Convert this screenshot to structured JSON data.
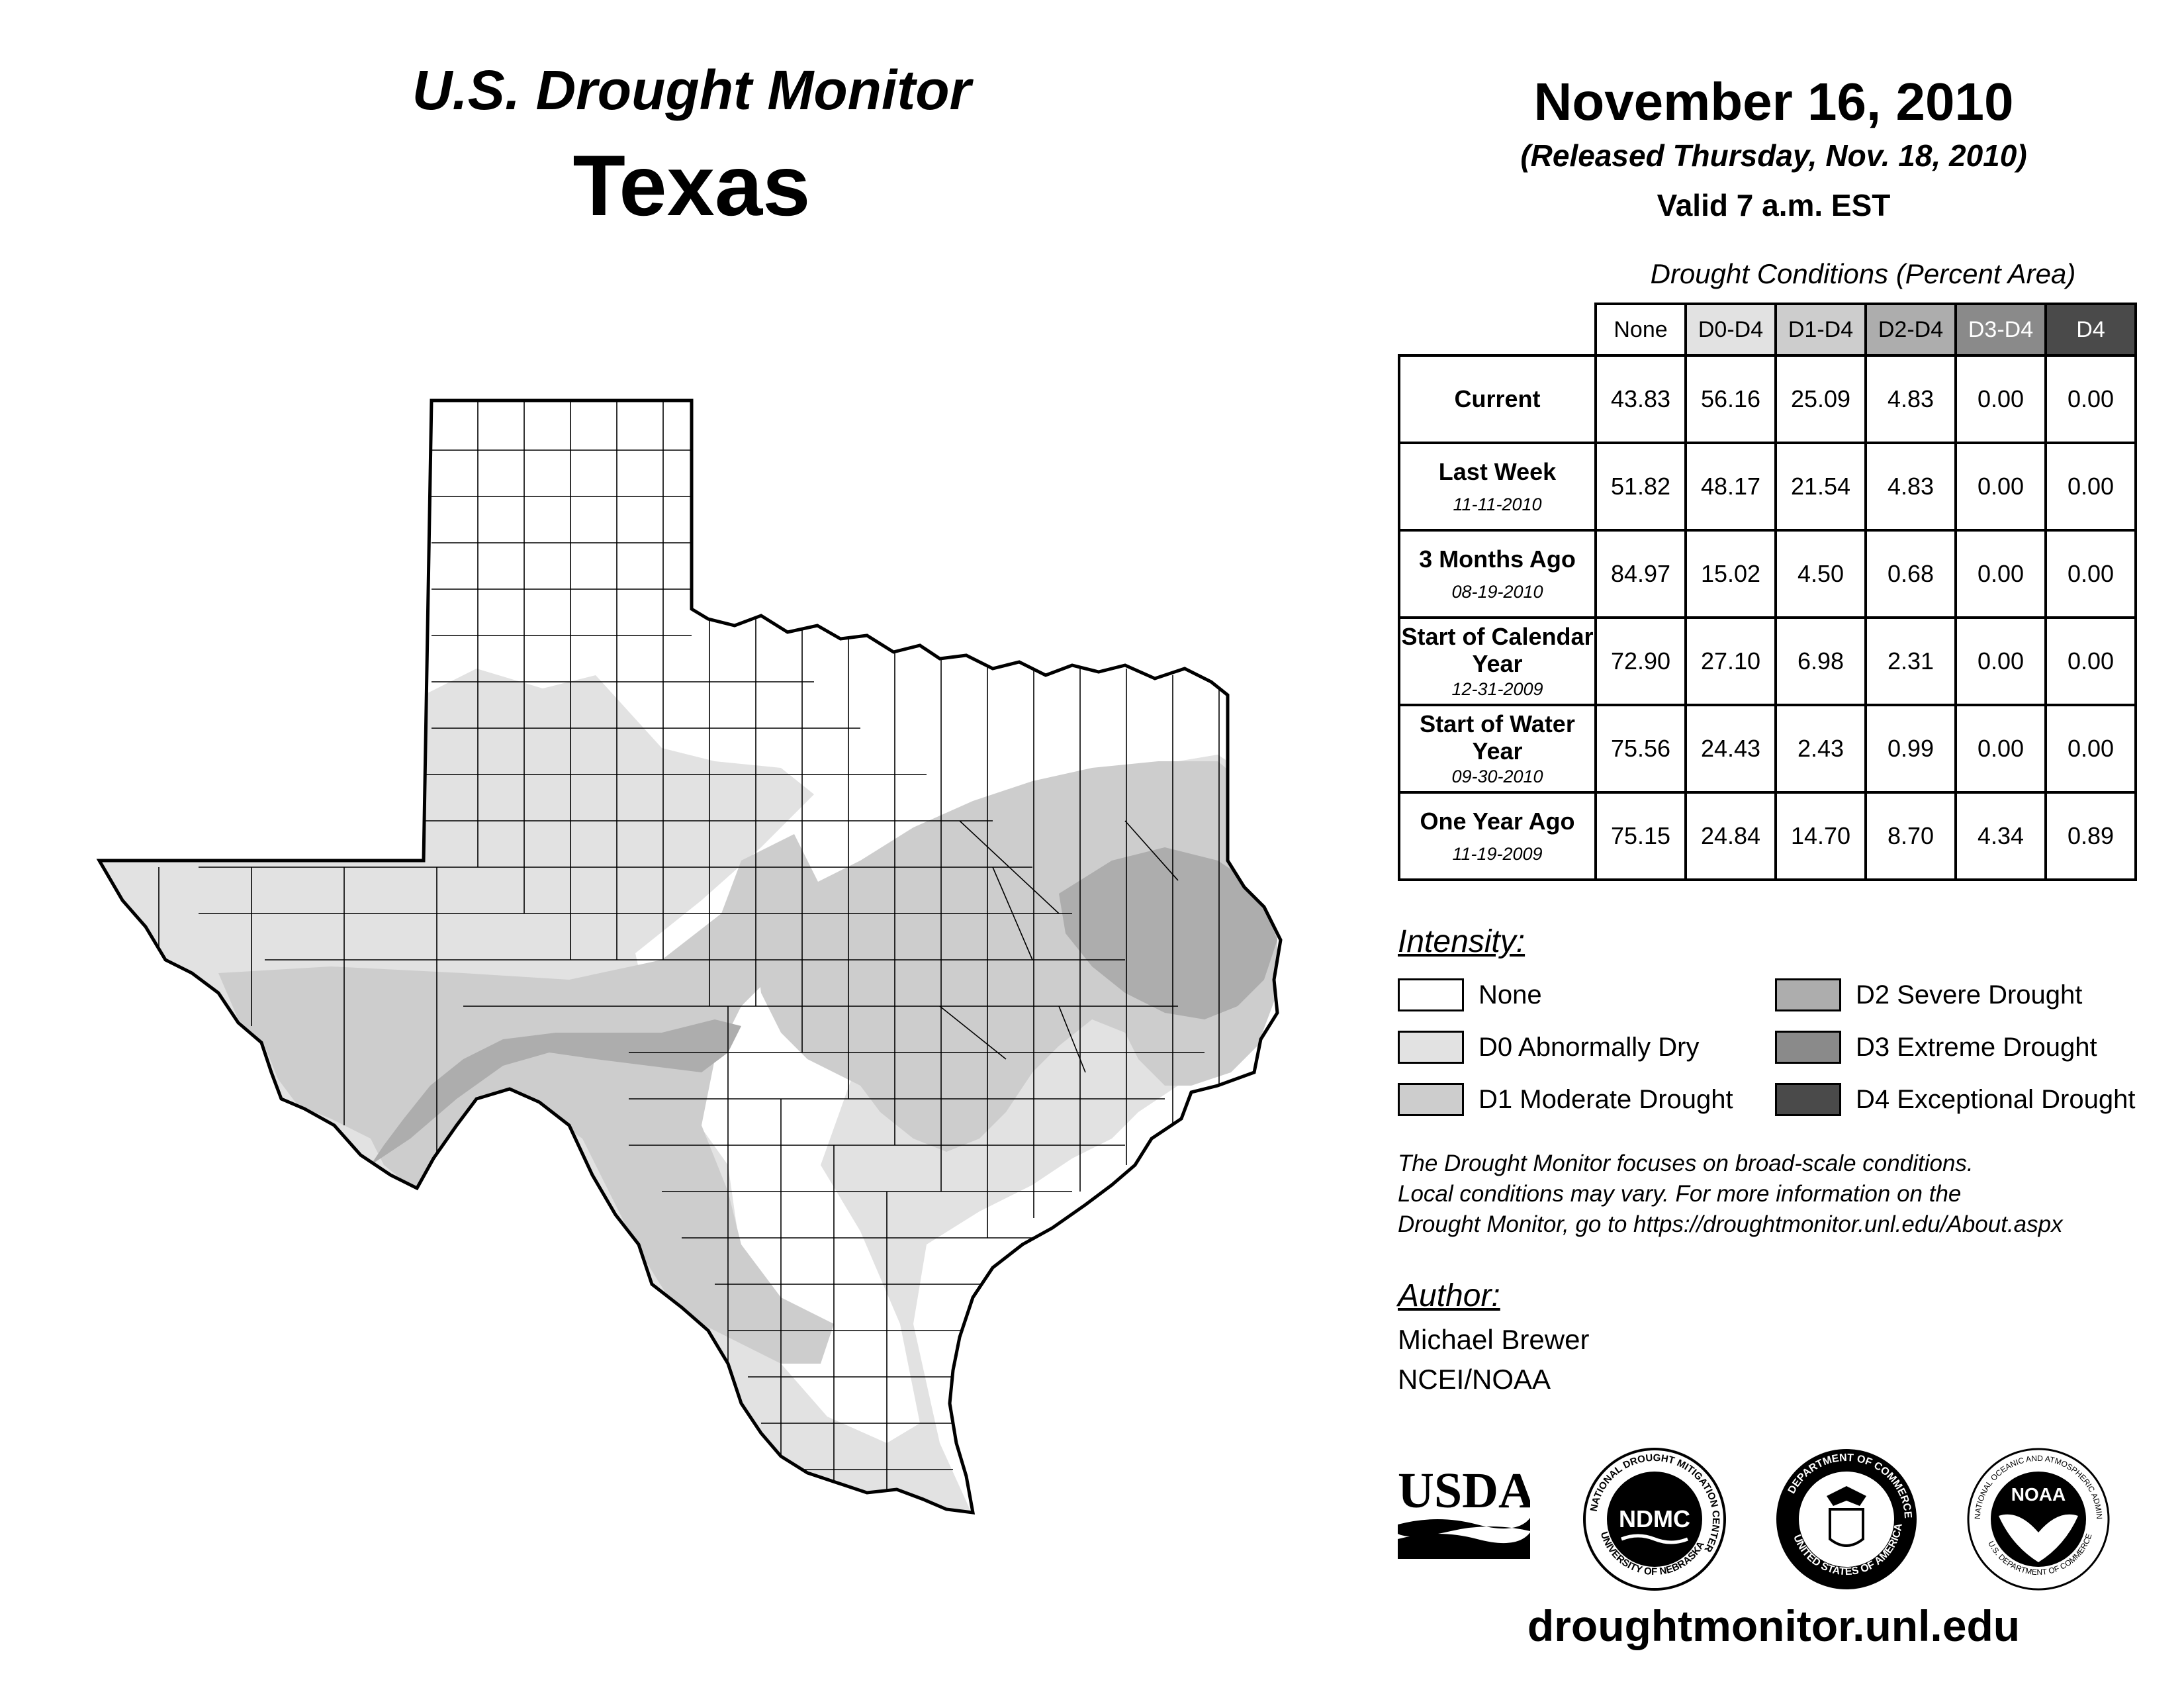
{
  "header": {
    "monitor_title": "U.S. Drought Monitor",
    "state": "Texas",
    "date": "November 16, 2010",
    "released": "(Released Thursday, Nov. 18, 2010)",
    "valid": "Valid 7 a.m. EST"
  },
  "table": {
    "title": "Drought Conditions (Percent Area)",
    "columns": [
      "None",
      "D0-D4",
      "D1-D4",
      "D2-D4",
      "D3-D4",
      "D4"
    ],
    "column_colors": [
      "#ffffff",
      "#e2e2e2",
      "#cdcdcd",
      "#adadad",
      "#8a8a8a",
      "#4a4a4a"
    ],
    "rows": [
      {
        "label": "Current",
        "date": "",
        "values": [
          "43.83",
          "56.16",
          "25.09",
          "4.83",
          "0.00",
          "0.00"
        ]
      },
      {
        "label": "Last Week",
        "date": "11-11-2010",
        "values": [
          "51.82",
          "48.17",
          "21.54",
          "4.83",
          "0.00",
          "0.00"
        ]
      },
      {
        "label": "3 Months Ago",
        "date": "08-19-2010",
        "values": [
          "84.97",
          "15.02",
          "4.50",
          "0.68",
          "0.00",
          "0.00"
        ]
      },
      {
        "label": "Start of Calendar Year",
        "date": "12-31-2009",
        "values": [
          "72.90",
          "27.10",
          "6.98",
          "2.31",
          "0.00",
          "0.00"
        ]
      },
      {
        "label": "Start of Water Year",
        "date": "09-30-2010",
        "values": [
          "75.56",
          "24.43",
          "2.43",
          "0.99",
          "0.00",
          "0.00"
        ]
      },
      {
        "label": "One Year Ago",
        "date": "11-19-2009",
        "values": [
          "75.15",
          "24.84",
          "14.70",
          "8.70",
          "4.34",
          "0.89"
        ]
      }
    ]
  },
  "legend": {
    "title": "Intensity:",
    "items": [
      {
        "label": "None",
        "color": "#ffffff"
      },
      {
        "label": "D0 Abnormally Dry",
        "color": "#e2e2e2"
      },
      {
        "label": "D1 Moderate Drought",
        "color": "#cdcdcd"
      },
      {
        "label": "D2 Severe Drought",
        "color": "#adadad"
      },
      {
        "label": "D3 Extreme Drought",
        "color": "#8a8a8a"
      },
      {
        "label": "D4 Exceptional Drought",
        "color": "#4a4a4a"
      }
    ]
  },
  "disclaimer": {
    "line1": "The Drought Monitor focuses on broad-scale conditions.",
    "line2": "Local conditions may vary. For more information on the",
    "line3": "Drought Monitor, go to https://droughtmonitor.unl.edu/About.aspx"
  },
  "author": {
    "title": "Author:",
    "name": "Michael Brewer",
    "org": "NCEI/NOAA"
  },
  "logos": {
    "usda": "USDA",
    "ndmc": "NDMC",
    "ndmc_ring_top": "NATIONAL DROUGHT MITIGATION CENTER",
    "ndmc_ring_bottom": "UNIVERSITY OF NEBRASKA",
    "doc_ring_top": "DEPARTMENT OF COMMERCE",
    "doc_ring_bottom": "UNITED STATES OF AMERICA",
    "noaa": "NOAA",
    "noaa_ring_top": "NATIONAL OCEANIC AND ATMOSPHERIC ADMINISTRATION",
    "noaa_ring_bottom": "U.S. DEPARTMENT OF COMMERCE"
  },
  "footer": {
    "website": "droughtmonitor.unl.edu"
  }
}
